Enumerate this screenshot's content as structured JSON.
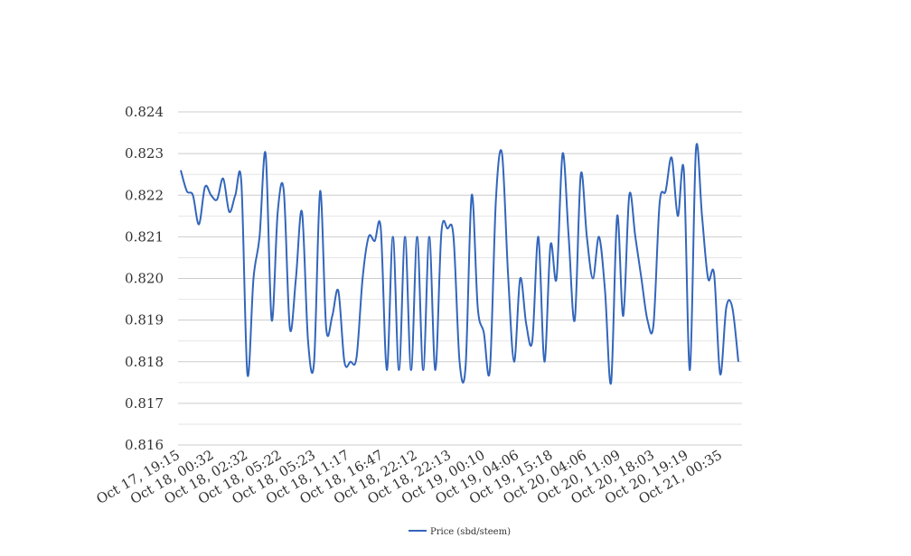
{
  "chart_data": {
    "type": "line",
    "title": "",
    "xlabel": "",
    "ylabel": "",
    "ylim": [
      0.816,
      0.824
    ],
    "y_ticks": [
      "0.816",
      "0.817",
      "0.818",
      "0.819",
      "0.820",
      "0.821",
      "0.822",
      "0.823",
      "0.824"
    ],
    "grid": true,
    "minor_grid": true,
    "legend_position": "bottom-center",
    "x_tick_labels": [
      "Oct 17, 19:15",
      "Oct 18, 00:32",
      "Oct 18, 02:32",
      "Oct 18, 05:22",
      "Oct 18, 05:23",
      "Oct 18, 11:17",
      "Oct 18, 16:47",
      "Oct 18, 22:12",
      "Oct 18, 22:13",
      "Oct 19, 00:10",
      "Oct 19, 04:06",
      "Oct 19, 15:18",
      "Oct 20, 04:06",
      "Oct 20, 11:09",
      "Oct 20, 18:03",
      "Oct 20, 19:19",
      "Oct 21, 00:35"
    ],
    "series": [
      {
        "name": "Price (sbd/steem)",
        "color": "#3366bb",
        "values": [
          0.8226,
          0.8221,
          0.822,
          0.8213,
          0.8222,
          0.822,
          0.8219,
          0.8224,
          0.8216,
          0.822,
          0.8223,
          0.8177,
          0.82,
          0.821,
          0.823,
          0.819,
          0.8216,
          0.8221,
          0.8188,
          0.82,
          0.8216,
          0.8185,
          0.818,
          0.8221,
          0.8188,
          0.8191,
          0.8197,
          0.818,
          0.818,
          0.8181,
          0.82,
          0.821,
          0.8209,
          0.8212,
          0.8178,
          0.821,
          0.8178,
          0.821,
          0.8178,
          0.821,
          0.8178,
          0.821,
          0.8178,
          0.8211,
          0.8212,
          0.821,
          0.818,
          0.8179,
          0.822,
          0.8193,
          0.8187,
          0.8178,
          0.8219,
          0.823,
          0.8201,
          0.818,
          0.82,
          0.8189,
          0.8185,
          0.821,
          0.818,
          0.8208,
          0.82,
          0.823,
          0.821,
          0.819,
          0.8225,
          0.821,
          0.82,
          0.821,
          0.8197,
          0.8175,
          0.8215,
          0.8191,
          0.822,
          0.821,
          0.82,
          0.819,
          0.8189,
          0.8218,
          0.8221,
          0.8229,
          0.8215,
          0.8226,
          0.8178,
          0.8231,
          0.8215,
          0.82,
          0.8201,
          0.8177,
          0.8193,
          0.8193,
          0.818
        ]
      }
    ]
  }
}
